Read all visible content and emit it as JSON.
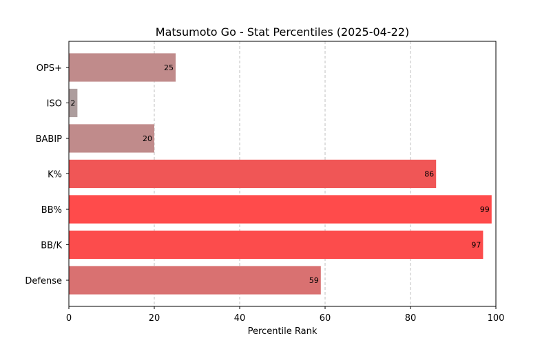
{
  "chart_data": {
    "type": "bar",
    "orientation": "horizontal",
    "title": "Matsumoto Go - Stat Percentiles (2025-04-22)",
    "xlabel": "Percentile Rank",
    "ylabel": "",
    "xlim": [
      0,
      100
    ],
    "xticks": [
      0,
      20,
      40,
      60,
      80,
      100
    ],
    "grid": "x-dashed",
    "categories": [
      "OPS+",
      "ISO",
      "BABIP",
      "K%",
      "BB%",
      "BB/K",
      "Defense"
    ],
    "values": [
      25,
      2,
      20,
      86,
      99,
      97,
      59
    ],
    "colors": [
      "#c08b8b",
      "#ad9d9d",
      "#c08b8b",
      "#f05656",
      "#ff4b4b",
      "#fc4c4c",
      "#d97171"
    ]
  }
}
